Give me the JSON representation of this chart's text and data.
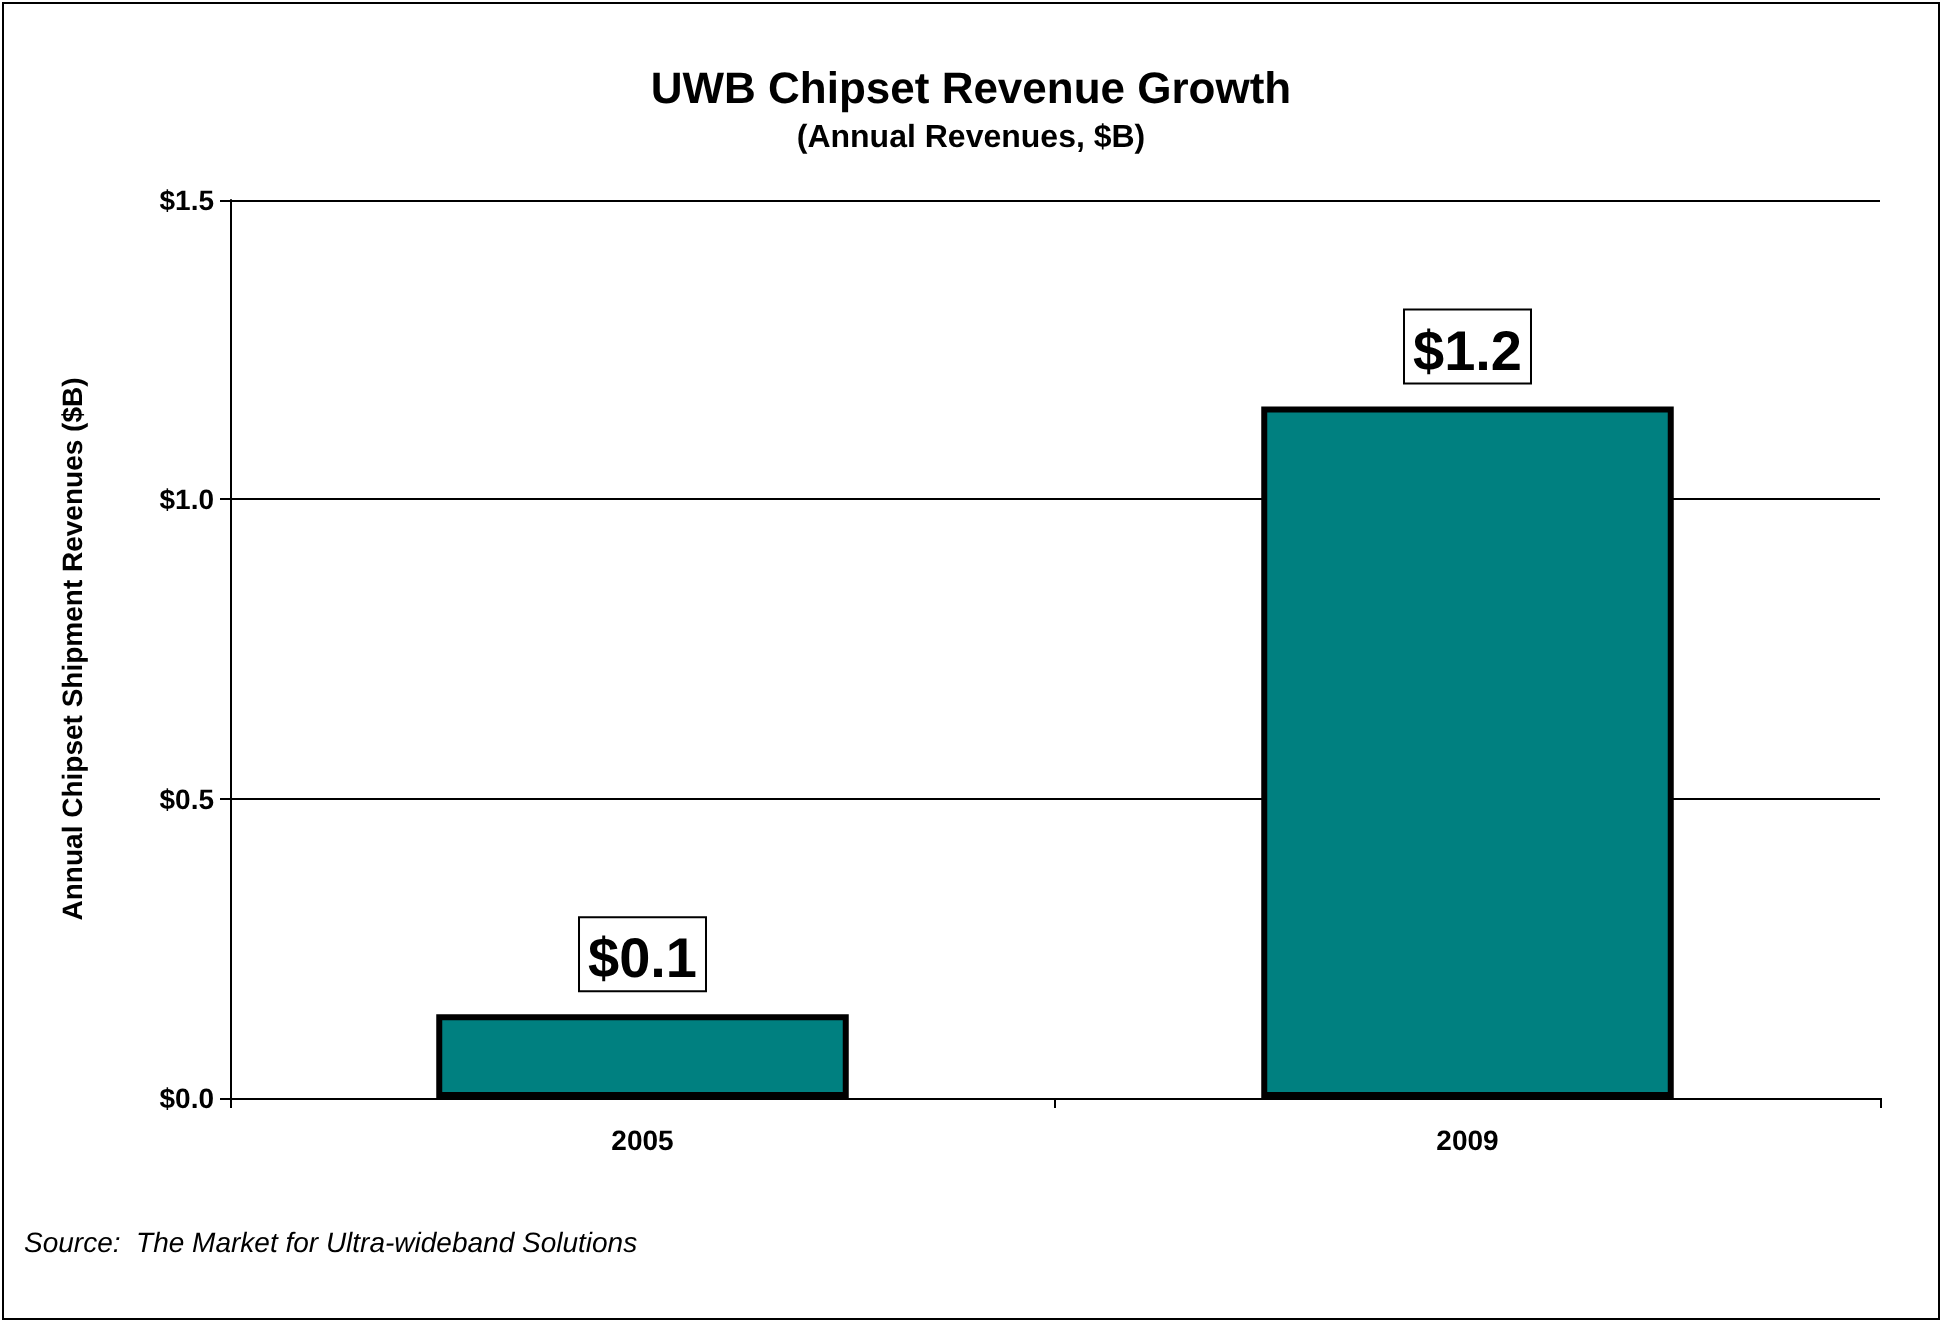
{
  "chart_data": {
    "type": "bar",
    "title": "UWB Chipset Revenue Growth",
    "subtitle": "(Annual Revenues, $B)",
    "ylabel": "Annual Chipset Shipment Revenues ($B)",
    "categories": [
      "2005",
      "2009"
    ],
    "values": [
      0.14,
      1.155
    ],
    "value_labels": [
      "$0.1",
      "$1.2"
    ],
    "color": "#008080",
    "ylim": [
      0,
      1.5
    ],
    "yticks": [
      {
        "value": 0,
        "label": "$0.0"
      },
      {
        "value": 0.5,
        "label": "$0.5"
      },
      {
        "value": 1,
        "label": "$1.0"
      },
      {
        "value": 1.5,
        "label": "$1.5"
      }
    ],
    "grid": "y",
    "annotations": [
      "Source:  The Market for Ultra-wideband Solutions"
    ]
  }
}
